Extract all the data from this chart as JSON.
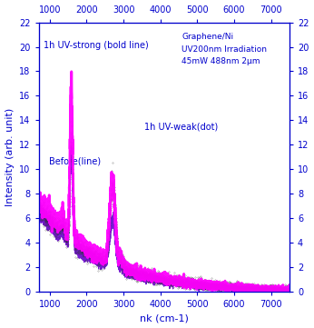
{
  "xlim": [
    700,
    7500
  ],
  "ylim": [
    0,
    22
  ],
  "xlabel": "nk (cm-1)",
  "ylabel": "Intensity (arb. unit)",
  "bg_color": "#ffffff",
  "text_color": "#0000cc",
  "annotation_strong": "1h UV-strong (bold line)",
  "annotation_weak": "1h UV-weak(dot)",
  "annotation_before": "Before(line)",
  "annotation_info": "Graphene/Ni\nUV200nm Irradiation\n45mW 488nm 2µm",
  "line_color_strong": "#ff00ff",
  "line_color_before": "#6600cc",
  "line_color_weak": "#333333",
  "xticks": [
    1000,
    2000,
    3000,
    4000,
    5000,
    6000,
    7000
  ],
  "yticks": [
    0,
    2,
    4,
    6,
    8,
    10,
    12,
    14,
    16,
    18,
    20,
    22
  ],
  "seed": 42
}
